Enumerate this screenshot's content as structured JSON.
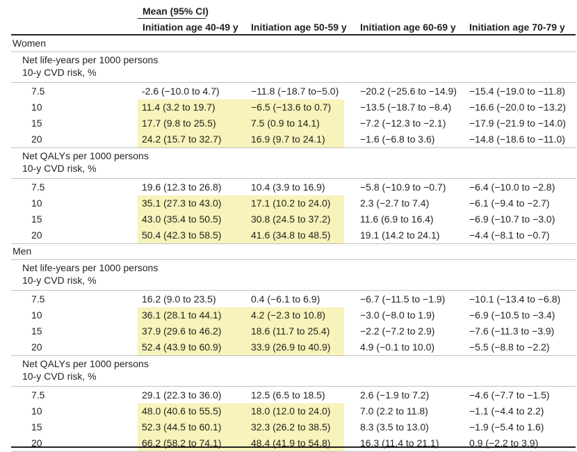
{
  "header": {
    "top": "Mean (95% CI)",
    "columns": [
      "Initiation age 40-49 y",
      "Initiation age 50-59 y",
      "Initiation age 60-69 y",
      "Initiation age 70-79 y"
    ]
  },
  "groups": [
    {
      "name": "Women",
      "sections": [
        {
          "title": "Net life-years per 1000 persons",
          "subtitle": "10-y CVD risk, %",
          "rows": [
            {
              "risk": "7.5",
              "values": [
                "-2.6 (−10.0 to 4.7)",
                "−11.8 (−18.7 to−5.0)",
                "−20.2 (−25.6 to −14.9)",
                "−15.4 (−19.0 to −11.8)"
              ],
              "highlight": [
                false,
                false,
                false,
                false
              ]
            },
            {
              "risk": "10",
              "values": [
                "11.4 (3.2 to 19.7)",
                "−6.5 (−13.6 to 0.7)",
                "−13.5 (−18.7 to −8.4)",
                "−16.6 (−20.0 to −13.2)"
              ],
              "highlight": [
                true,
                true,
                false,
                false
              ]
            },
            {
              "risk": "15",
              "values": [
                "17.7 (9.8 to 25.5)",
                "7.5 (0.9 to 14.1)",
                "−7.2 (−12.3 to −2.1)",
                "−17.9 (−21.9 to −14.0)"
              ],
              "highlight": [
                true,
                true,
                false,
                false
              ]
            },
            {
              "risk": "20",
              "values": [
                "24.2 (15.7 to 32.7)",
                "16.9 (9.7 to 24.1)",
                "−1.6 (−6.8 to 3.6)",
                "−14.8 (−18.6 to −11.0)"
              ],
              "highlight": [
                true,
                true,
                false,
                false
              ]
            }
          ]
        },
        {
          "title": "Net QALYs per 1000 persons",
          "subtitle": "10-y CVD risk, %",
          "rows": [
            {
              "risk": "7.5",
              "values": [
                "19.6 (12.3 to 26.8)",
                "10.4 (3.9 to 16.9)",
                "−5.8 (−10.9 to −0.7)",
                "−6.4 (−10.0 to −2.8)"
              ],
              "highlight": [
                false,
                false,
                false,
                false
              ]
            },
            {
              "risk": "10",
              "values": [
                "35.1 (27.3 to 43.0)",
                "17.1 (10.2 to 24.0)",
                "2.3 (−2.7 to 7.4)",
                "−6.1 (−9.4 to −2.7)"
              ],
              "highlight": [
                true,
                true,
                false,
                false
              ]
            },
            {
              "risk": "15",
              "values": [
                "43.0 (35.4 to 50.5)",
                "30.8 (24.5 to 37.2)",
                "11.6 (6.9 to 16.4)",
                "−6.9 (−10.7 to −3.0)"
              ],
              "highlight": [
                true,
                true,
                false,
                false
              ]
            },
            {
              "risk": "20",
              "values": [
                "50.4 (42.3 to 58.5)",
                "41.6 (34.8 to 48.5)",
                "19.1 (14.2 to 24.1)",
                "−4.4 (−8.1 to −0.7)"
              ],
              "highlight": [
                true,
                true,
                false,
                false
              ]
            }
          ]
        }
      ]
    },
    {
      "name": "Men",
      "sections": [
        {
          "title": "Net life-years per 1000 persons",
          "subtitle": "10-y CVD risk, %",
          "rows": [
            {
              "risk": "7.5",
              "values": [
                "16.2 (9.0 to 23.5)",
                "0.4 (−6.1 to 6.9)",
                "−6.7 (−11.5 to −1.9)",
                "−10.1 (−13.4 to −6.8)"
              ],
              "highlight": [
                false,
                false,
                false,
                false
              ]
            },
            {
              "risk": "10",
              "values": [
                "36.1 (28.1 to 44.1)",
                "4.2 (−2.3 to 10.8)",
                "−3.0 (−8.0 to 1.9)",
                "−6.9 (−10.5 to −3.4)"
              ],
              "highlight": [
                true,
                true,
                false,
                false
              ]
            },
            {
              "risk": "15",
              "values": [
                "37.9 (29.6 to 46.2)",
                "18.6 (11.7 to 25.4)",
                "−2.2 (−7.2 to 2.9)",
                "−7.6 (−11.3 to −3.9)"
              ],
              "highlight": [
                true,
                true,
                false,
                false
              ]
            },
            {
              "risk": "20",
              "values": [
                "52.4 (43.9 to 60.9)",
                "33.9 (26.9 to 40.9)",
                "4.9 (−0.1 to 10.0)",
                "−5.5 (−8.8 to −2.2)"
              ],
              "highlight": [
                true,
                true,
                false,
                false
              ]
            }
          ]
        },
        {
          "title": "Net QALYs per 1000 persons",
          "subtitle": "10-y CVD risk, %",
          "rows": [
            {
              "risk": "7.5",
              "values": [
                "29.1 (22.3 to 36.0)",
                "12.5 (6.5 to 18.5)",
                "2.6 (−1.9 to 7.2)",
                "−4.6 (−7.7 to −1.5)"
              ],
              "highlight": [
                false,
                false,
                false,
                false
              ]
            },
            {
              "risk": "10",
              "values": [
                "48.0 (40.6 to 55.5)",
                "18.0 (12.0 to 24.0)",
                "7.0 (2.2 to 11.8)",
                "−1.1 (−4.4 to 2.2)"
              ],
              "highlight": [
                true,
                true,
                false,
                false
              ]
            },
            {
              "risk": "15",
              "values": [
                "52.3 (44.5 to 60.1)",
                "32.3 (26.2 to 38.5)",
                "8.3 (3.5 to 13.0)",
                "−1.9 (−5.4 to 1.6)"
              ],
              "highlight": [
                true,
                true,
                false,
                false
              ]
            },
            {
              "risk": "20",
              "values": [
                "66.2 (58.2 to 74.1)",
                "48.4 (41.9 to 54.8)",
                "16.3 (11.4 to 21.1)",
                "0.9 (−2.2 to 3.9)"
              ],
              "highlight": [
                true,
                true,
                false,
                false
              ]
            }
          ]
        }
      ]
    }
  ],
  "colors": {
    "highlight": "#f7f3ba",
    "text": "#231f20",
    "rule": "#231f20",
    "light_rule": "#bfbfbf"
  }
}
